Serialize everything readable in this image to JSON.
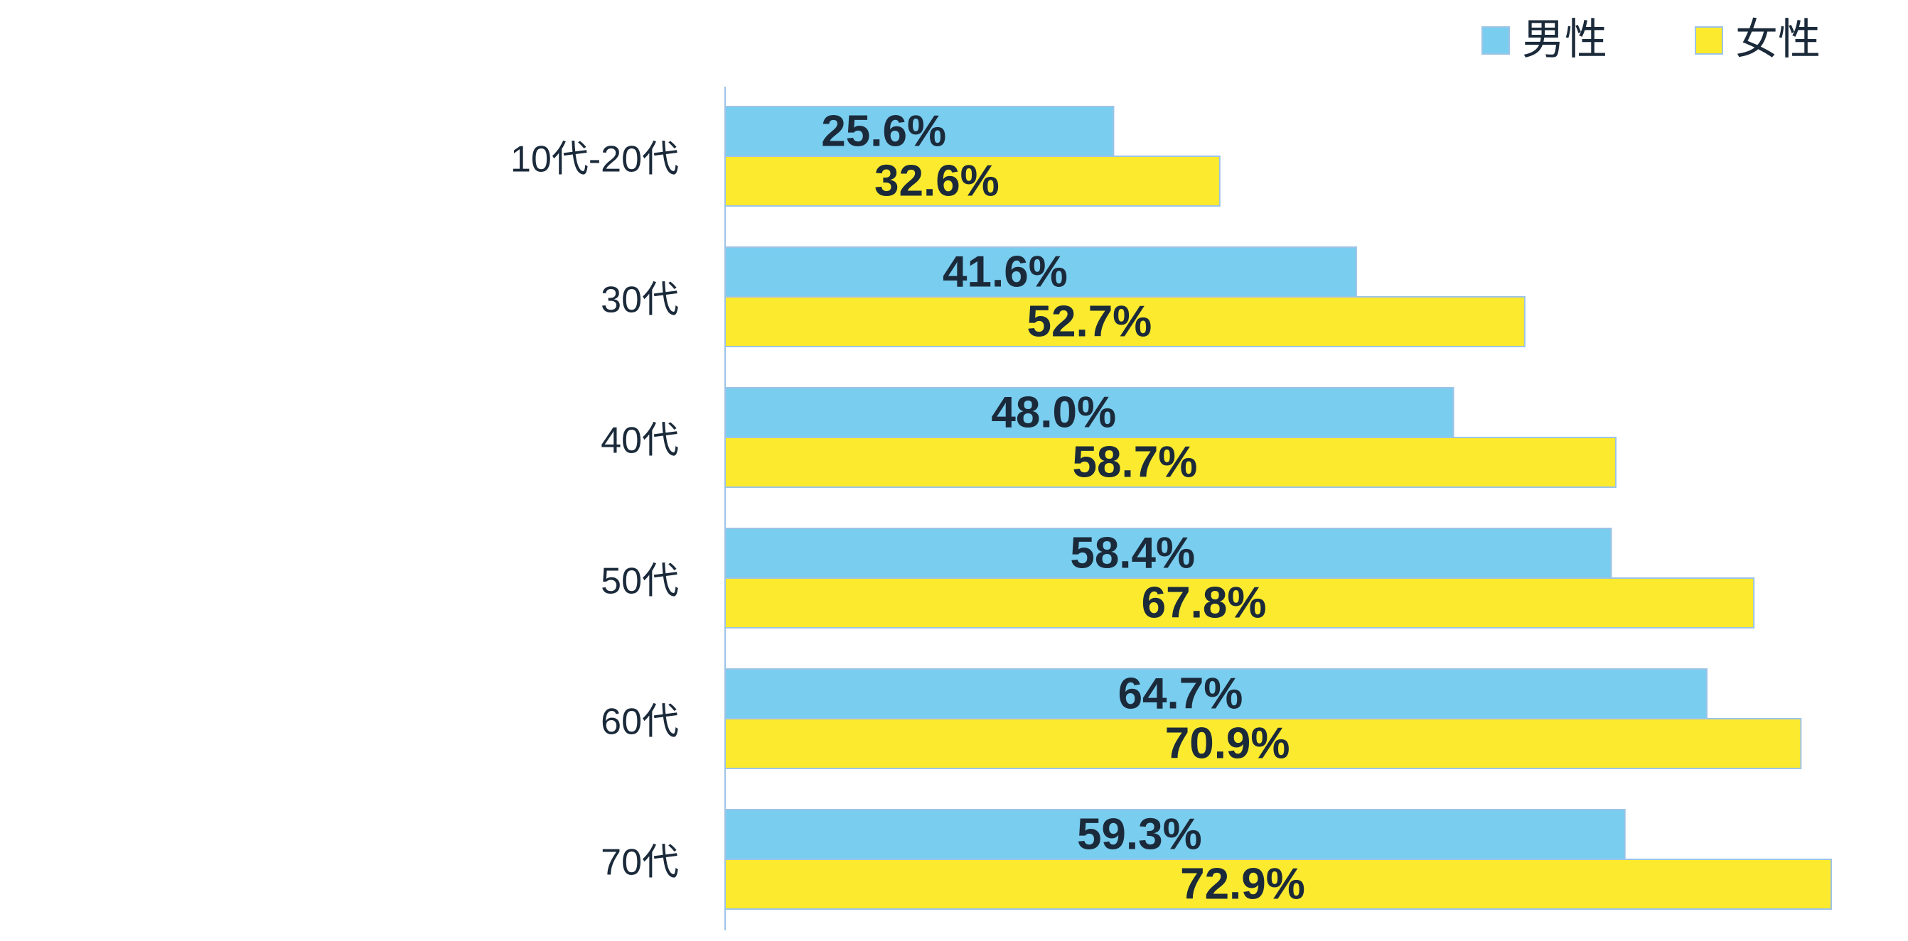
{
  "chart_data": {
    "type": "bar",
    "orientation": "horizontal",
    "categories": [
      "10代-20代",
      "30代",
      "40代",
      "50代",
      "60代",
      "70代"
    ],
    "series": [
      {
        "name": "男性",
        "color": "#79cdef",
        "values": [
          25.6,
          41.6,
          48.0,
          58.4,
          64.7,
          59.3
        ],
        "labels": [
          "25.6%",
          "41.6%",
          "48.0%",
          "58.4%",
          "64.7%",
          "59.3%"
        ]
      },
      {
        "name": "女性",
        "color": "#fbea2e",
        "values": [
          32.6,
          52.7,
          58.7,
          67.8,
          70.9,
          72.9
        ],
        "labels": [
          "32.6%",
          "52.7%",
          "58.7%",
          "67.8%",
          "70.9%",
          "72.9%"
        ]
      }
    ],
    "xlim": [
      0,
      72.9
    ],
    "grid": false,
    "legend": "top-right",
    "axis_color": "#9dc3e6",
    "bar_border_color": "#9dc3e6",
    "text_color": "#1b2a3a"
  }
}
